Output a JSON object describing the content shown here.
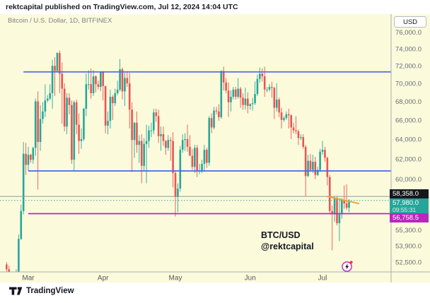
{
  "attribution": "rektcapital published on TradingView.com, Jul 12, 2024 14:04 UTC",
  "chart_header": {
    "symbol_title": "Bitcoin / U.S. Dollar, 1D, BITFINEX"
  },
  "price_axis": {
    "currency_button": "USD"
  },
  "price_labels": {
    "crosshair": {
      "text": "58,358.0",
      "price": 58358,
      "bg": "#16181e"
    },
    "last": {
      "text": "57,980.0",
      "countdown": "09:55:31",
      "price": 57980,
      "bg": "#26a69a"
    },
    "level": {
      "text": "56,758.5",
      "price": 56758.5,
      "bg": "#b927be"
    }
  },
  "annotation": {
    "line1": "BTC/USD",
    "line2": "@rektcapital"
  },
  "footer": {
    "logo_text": "TradingView"
  },
  "chart_data": {
    "type": "candlestick",
    "title": "Bitcoin / U.S. Dollar",
    "symbol": "BTC/USD",
    "exchange": "BITFINEX",
    "interval": "1D",
    "scale": "log",
    "grid": false,
    "colors": {
      "up": "#26a69a",
      "down": "#ef5350",
      "background": "#fbfbdc",
      "blue": "#4964f0",
      "purple": "#b927be",
      "gray": "#95969b",
      "teal": "#26a69a",
      "orange": "#f0a136",
      "axis_text": "#6a6d78",
      "month_text": "#55575e",
      "separator": "#a9abb0"
    },
    "y_axis": {
      "ticks": [
        {
          "price": 76000,
          "label": "76,000.0"
        },
        {
          "price": 74000,
          "label": "74,000.0"
        },
        {
          "price": 72000,
          "label": "72,000.0"
        },
        {
          "price": 70000,
          "label": "70,000.0"
        },
        {
          "price": 68000,
          "label": "68,000.0"
        },
        {
          "price": 66000,
          "label": "66,000.0"
        },
        {
          "price": 64000,
          "label": "64,000.0"
        },
        {
          "price": 62000,
          "label": "62,000.0"
        },
        {
          "price": 60000,
          "label": "60,000.0"
        },
        {
          "price": 55300,
          "label": "55,300.0"
        },
        {
          "price": 53900,
          "label": "53,900.0"
        },
        {
          "price": 52500,
          "label": "52,500.0"
        }
      ]
    },
    "x_axis": {
      "months": [
        {
          "label": "Mar",
          "date": "03-01"
        },
        {
          "label": "Apr",
          "date": "04-01"
        },
        {
          "label": "May",
          "date": "05-01"
        },
        {
          "label": "Jun",
          "date": "06-01"
        },
        {
          "label": "Jul",
          "date": "07-01"
        }
      ]
    },
    "levels": [
      {
        "name": "resistance-upper-blue-line",
        "price": 71300,
        "from": "02-28",
        "style": "solid",
        "color": "blue",
        "width": 1.7
      },
      {
        "name": "support-mid-blue-line",
        "price": 60800,
        "from": "03-01",
        "style": "solid",
        "color": "blue",
        "width": 1.7
      },
      {
        "name": "support-low-purple-line",
        "price": 56758.5,
        "from": "03-01",
        "style": "solid",
        "color": "purple",
        "width": 1.7
      },
      {
        "name": "crosshair-price-line",
        "price": 58358,
        "from": null,
        "style": "solid",
        "color": "gray",
        "width": 1
      },
      {
        "name": "last-price-line",
        "price": 57980,
        "from": null,
        "style": "dotted",
        "color": "teal",
        "width": 1
      }
    ],
    "trendline": {
      "name": "orange-trendline",
      "date1": "07-03",
      "price1": 58350,
      "date2": "07-16",
      "price2": 57700,
      "color": "orange",
      "width": 2
    },
    "candles": [
      [
        "02-21",
        52300,
        52500,
        50800,
        51900
      ],
      [
        "02-22",
        51900,
        52200,
        50900,
        51300
      ],
      [
        "02-23",
        51300,
        51500,
        50500,
        50700
      ],
      [
        "02-24",
        50700,
        51700,
        50600,
        51600
      ],
      [
        "02-25",
        51600,
        51900,
        51200,
        51700
      ],
      [
        "02-26",
        51700,
        54900,
        51300,
        54500
      ],
      [
        "02-27",
        54500,
        57600,
        54400,
        57000
      ],
      [
        "02-28",
        57000,
        63700,
        56700,
        62500
      ],
      [
        "02-29",
        62500,
        63600,
        60400,
        61400
      ],
      [
        "03-01",
        61400,
        63200,
        60800,
        62400
      ],
      [
        "03-02",
        62400,
        62500,
        61600,
        61900
      ],
      [
        "03-03",
        61900,
        63200,
        61500,
        63100
      ],
      [
        "03-04",
        63100,
        68300,
        62300,
        68000
      ],
      [
        "03-05",
        68000,
        69100,
        59000,
        63700
      ],
      [
        "03-06",
        63700,
        67600,
        62800,
        66100
      ],
      [
        "03-07",
        66100,
        67900,
        65600,
        66900
      ],
      [
        "03-08",
        66900,
        69900,
        66300,
        68100
      ],
      [
        "03-09",
        68100,
        68700,
        67900,
        68300
      ],
      [
        "03-10",
        68300,
        69900,
        68100,
        68900
      ],
      [
        "03-11",
        68900,
        72700,
        67200,
        72000
      ],
      [
        "03-12",
        72000,
        73000,
        68600,
        71400
      ],
      [
        "03-13",
        71400,
        73600,
        71300,
        73500
      ],
      [
        "03-14",
        73500,
        73800,
        68900,
        71100
      ],
      [
        "03-15",
        71100,
        72400,
        65600,
        69400
      ],
      [
        "03-16",
        69400,
        70000,
        64800,
        65300
      ],
      [
        "03-17",
        65300,
        68900,
        64500,
        68400
      ],
      [
        "03-18",
        68400,
        68900,
        66600,
        67600
      ],
      [
        "03-19",
        67600,
        68100,
        61500,
        61900
      ],
      [
        "03-20",
        61900,
        68100,
        60800,
        67900
      ],
      [
        "03-21",
        67900,
        68200,
        64500,
        65500
      ],
      [
        "03-22",
        65500,
        66700,
        62500,
        63800
      ],
      [
        "03-23",
        63800,
        65100,
        63000,
        64000
      ],
      [
        "03-24",
        64000,
        67300,
        63800,
        67200
      ],
      [
        "03-25",
        67200,
        71100,
        66400,
        69900
      ],
      [
        "03-26",
        69900,
        71500,
        69300,
        69900
      ],
      [
        "03-27",
        69900,
        71700,
        68300,
        68900
      ],
      [
        "03-28",
        68900,
        71500,
        68600,
        70800
      ],
      [
        "03-29",
        70800,
        70900,
        69000,
        69900
      ],
      [
        "03-30",
        69900,
        70300,
        69300,
        69600
      ],
      [
        "03-31",
        69600,
        71300,
        69100,
        71300
      ],
      [
        "04-01",
        71300,
        71400,
        68100,
        69700
      ],
      [
        "04-02",
        69700,
        69700,
        64600,
        65400
      ],
      [
        "04-03",
        65400,
        66900,
        64500,
        65900
      ],
      [
        "04-04",
        65900,
        69300,
        65100,
        68500
      ],
      [
        "04-05",
        68500,
        68700,
        66000,
        67800
      ],
      [
        "04-06",
        67800,
        69400,
        67500,
        68900
      ],
      [
        "04-07",
        68900,
        70300,
        68700,
        69300
      ],
      [
        "04-08",
        69300,
        72800,
        69100,
        71600
      ],
      [
        "04-09",
        71600,
        71800,
        68200,
        69100
      ],
      [
        "04-10",
        69100,
        71200,
        67500,
        70600
      ],
      [
        "04-11",
        70600,
        71300,
        69600,
        70000
      ],
      [
        "04-12",
        70000,
        71200,
        65100,
        67100
      ],
      [
        "04-13",
        67100,
        67900,
        60700,
        63900
      ],
      [
        "04-14",
        63900,
        65800,
        62100,
        65700
      ],
      [
        "04-15",
        65700,
        66900,
        62600,
        63400
      ],
      [
        "04-16",
        63400,
        64400,
        61600,
        63800
      ],
      [
        "04-17",
        63800,
        64500,
        59600,
        61300
      ],
      [
        "04-18",
        61300,
        64100,
        60800,
        63500
      ],
      [
        "04-19",
        63500,
        65500,
        59600,
        63800
      ],
      [
        "04-20",
        63800,
        65400,
        63100,
        64900
      ],
      [
        "04-21",
        64900,
        65700,
        64200,
        64900
      ],
      [
        "04-22",
        64900,
        67200,
        64500,
        66800
      ],
      [
        "04-23",
        66800,
        67200,
        65800,
        66400
      ],
      [
        "04-24",
        66400,
        67100,
        63600,
        64300
      ],
      [
        "04-25",
        64300,
        65300,
        62800,
        64500
      ],
      [
        "04-26",
        64500,
        65300,
        63300,
        63800
      ],
      [
        "04-27",
        63800,
        63900,
        62400,
        63100
      ],
      [
        "04-28",
        63100,
        64400,
        62800,
        63900
      ],
      [
        "04-29",
        63900,
        64200,
        61800,
        63800
      ],
      [
        "04-30",
        63800,
        64700,
        59200,
        60600
      ],
      [
        "05-01",
        60600,
        60800,
        56500,
        58300
      ],
      [
        "05-02",
        58300,
        59600,
        56900,
        59100
      ],
      [
        "05-03",
        59100,
        63300,
        58800,
        62900
      ],
      [
        "05-04",
        62900,
        64500,
        62600,
        63900
      ],
      [
        "05-05",
        63900,
        64600,
        62800,
        64000
      ],
      [
        "05-06",
        64000,
        65500,
        62700,
        63200
      ],
      [
        "05-07",
        63200,
        64400,
        62300,
        62300
      ],
      [
        "05-08",
        62300,
        63000,
        60900,
        61200
      ],
      [
        "05-09",
        61200,
        63400,
        60600,
        63100
      ],
      [
        "05-10",
        63100,
        63400,
        60200,
        60800
      ],
      [
        "05-11",
        60800,
        61500,
        60500,
        60800
      ],
      [
        "05-12",
        60800,
        61900,
        60600,
        61500
      ],
      [
        "05-13",
        61500,
        63400,
        60800,
        62900
      ],
      [
        "05-14",
        62900,
        63100,
        61100,
        61600
      ],
      [
        "05-15",
        61600,
        66400,
        61300,
        66200
      ],
      [
        "05-16",
        66200,
        66700,
        64600,
        65200
      ],
      [
        "05-17",
        65200,
        67400,
        65000,
        67000
      ],
      [
        "05-18",
        67000,
        67400,
        66600,
        66900
      ],
      [
        "05-19",
        66900,
        67700,
        65900,
        66300
      ],
      [
        "05-20",
        66300,
        71500,
        66100,
        71400
      ],
      [
        "05-21",
        71400,
        71900,
        69200,
        70100
      ],
      [
        "05-22",
        70100,
        70600,
        68900,
        69200
      ],
      [
        "05-23",
        69200,
        70100,
        66300,
        67900
      ],
      [
        "05-24",
        67900,
        69200,
        66900,
        68500
      ],
      [
        "05-25",
        68500,
        69600,
        68200,
        69300
      ],
      [
        "05-26",
        69300,
        69600,
        68200,
        68500
      ],
      [
        "05-27",
        68500,
        70600,
        68300,
        69400
      ],
      [
        "05-28",
        69400,
        69600,
        67300,
        68400
      ],
      [
        "05-29",
        68400,
        68900,
        67100,
        67600
      ],
      [
        "05-30",
        67600,
        69500,
        67100,
        68300
      ],
      [
        "05-31",
        68300,
        69000,
        66700,
        67500
      ],
      [
        "06-01",
        67500,
        67800,
        67100,
        67700
      ],
      [
        "06-02",
        67700,
        68400,
        67000,
        67800
      ],
      [
        "06-03",
        67800,
        70200,
        67600,
        68800
      ],
      [
        "06-04",
        68800,
        71000,
        68600,
        70500
      ],
      [
        "06-05",
        70500,
        71800,
        70100,
        71100
      ],
      [
        "06-06",
        71100,
        71700,
        70200,
        70800
      ],
      [
        "06-07",
        70800,
        71900,
        68500,
        69300
      ],
      [
        "06-08",
        69300,
        69600,
        69000,
        69300
      ],
      [
        "06-09",
        69300,
        69900,
        69100,
        69600
      ],
      [
        "06-10",
        69600,
        70200,
        68400,
        69500
      ],
      [
        "06-11",
        69500,
        69600,
        66100,
        67300
      ],
      [
        "06-12",
        67300,
        70000,
        66900,
        68200
      ],
      [
        "06-13",
        68200,
        68400,
        66300,
        66800
      ],
      [
        "06-14",
        66800,
        67300,
        65100,
        66000
      ],
      [
        "06-15",
        66000,
        66400,
        65800,
        66200
      ],
      [
        "06-16",
        66200,
        66900,
        66000,
        66600
      ],
      [
        "06-17",
        66600,
        67200,
        65100,
        66500
      ],
      [
        "06-18",
        66500,
        66600,
        64000,
        65200
      ],
      [
        "06-19",
        65200,
        65700,
        64600,
        64900
      ],
      [
        "06-20",
        64900,
        66400,
        64500,
        64800
      ],
      [
        "06-21",
        64800,
        65000,
        63400,
        64100
      ],
      [
        "06-22",
        64100,
        64500,
        63900,
        64200
      ],
      [
        "06-23",
        64200,
        64500,
        63000,
        63200
      ],
      [
        "06-24",
        63200,
        63400,
        58400,
        60300
      ],
      [
        "06-25",
        60300,
        62400,
        60200,
        61800
      ],
      [
        "06-26",
        61800,
        62500,
        60700,
        60900
      ],
      [
        "06-27",
        60900,
        62400,
        60600,
        61700
      ],
      [
        "06-28",
        61700,
        62200,
        60000,
        60400
      ],
      [
        "06-29",
        60400,
        61200,
        60300,
        60900
      ],
      [
        "06-30",
        60900,
        63000,
        60700,
        62700
      ],
      [
        "07-01",
        62700,
        63800,
        62400,
        62900
      ],
      [
        "07-02",
        62900,
        63200,
        61700,
        62100
      ],
      [
        "07-03",
        62100,
        62200,
        59400,
        60200
      ],
      [
        "07-04",
        60200,
        60400,
        56700,
        57000
      ],
      [
        "07-05",
        57000,
        57500,
        53500,
        56700
      ],
      [
        "07-06",
        56700,
        58400,
        56000,
        58200
      ],
      [
        "07-07",
        58200,
        58400,
        55700,
        55900
      ],
      [
        "07-08",
        55900,
        58200,
        54300,
        56700
      ],
      [
        "07-09",
        56700,
        58200,
        56300,
        58000
      ],
      [
        "07-10",
        58000,
        59400,
        57200,
        57700
      ],
      [
        "07-11",
        57700,
        59500,
        57100,
        57300
      ],
      [
        "07-12",
        57300,
        58100,
        56900,
        57980
      ]
    ]
  }
}
